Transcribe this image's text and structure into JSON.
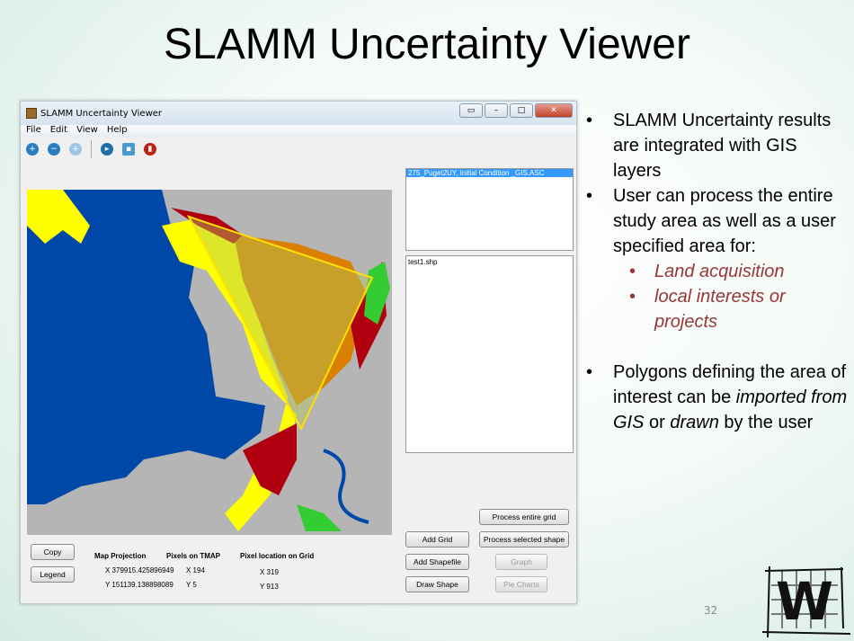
{
  "slide": {
    "title": "SLAMM Uncertainty Viewer",
    "page_number": "32",
    "logo_letter": "W"
  },
  "window": {
    "title": "SLAMM Uncertainty Viewer",
    "menu": [
      "File",
      "Edit",
      "View",
      "Help"
    ],
    "toolbar_icons": [
      "zoom-in-icon",
      "zoom-out-icon",
      "add-icon",
      "open-icon",
      "save-icon",
      "delete-icon"
    ],
    "grid_list": [
      "275_Puget2UY, Initial Condition _GIS.ASC"
    ],
    "shape_list": [
      "test1.shp"
    ],
    "buttons": {
      "copy": "Copy",
      "legend": "Legend",
      "add_grid": "Add Grid",
      "add_shapefile": "Add Shapefile",
      "draw_shape": "Draw Shape",
      "process_entire": "Process entire grid",
      "process_selected": "Process selected shape",
      "graph": "Graph",
      "pie_charts": "Pie Charts"
    },
    "info": {
      "h1": "Map Projection",
      "h2": "Pixels on TMAP",
      "h3": "Pixel location on Grid",
      "x_proj": "X 379915.425896949",
      "x_tmap": "X 194",
      "y_proj": "Y 151139.138898089",
      "y_tmap": "Y 5",
      "x_grid": "X 319",
      "y_grid": "Y 913"
    }
  },
  "bullets": [
    {
      "text": "SLAMM Uncertainty results are integrated with GIS layers"
    },
    {
      "text": "User can process the entire study area as well as a user specified area for:"
    },
    {
      "sub": "Land acquisition"
    },
    {
      "sub": "local interests or projects"
    },
    {
      "pre": "Polygons defining the area of interest can be ",
      "em1": "imported from GIS",
      "mid": " or ",
      "em2": "drawn",
      "post": " by the user"
    }
  ],
  "colors": {
    "water": "#0048a8",
    "upland": "#b5b5b5",
    "yellow": "#ffff00",
    "orange": "#d98000",
    "red": "#b00010",
    "green": "#33cc33",
    "sub_bullet": "#953735"
  }
}
